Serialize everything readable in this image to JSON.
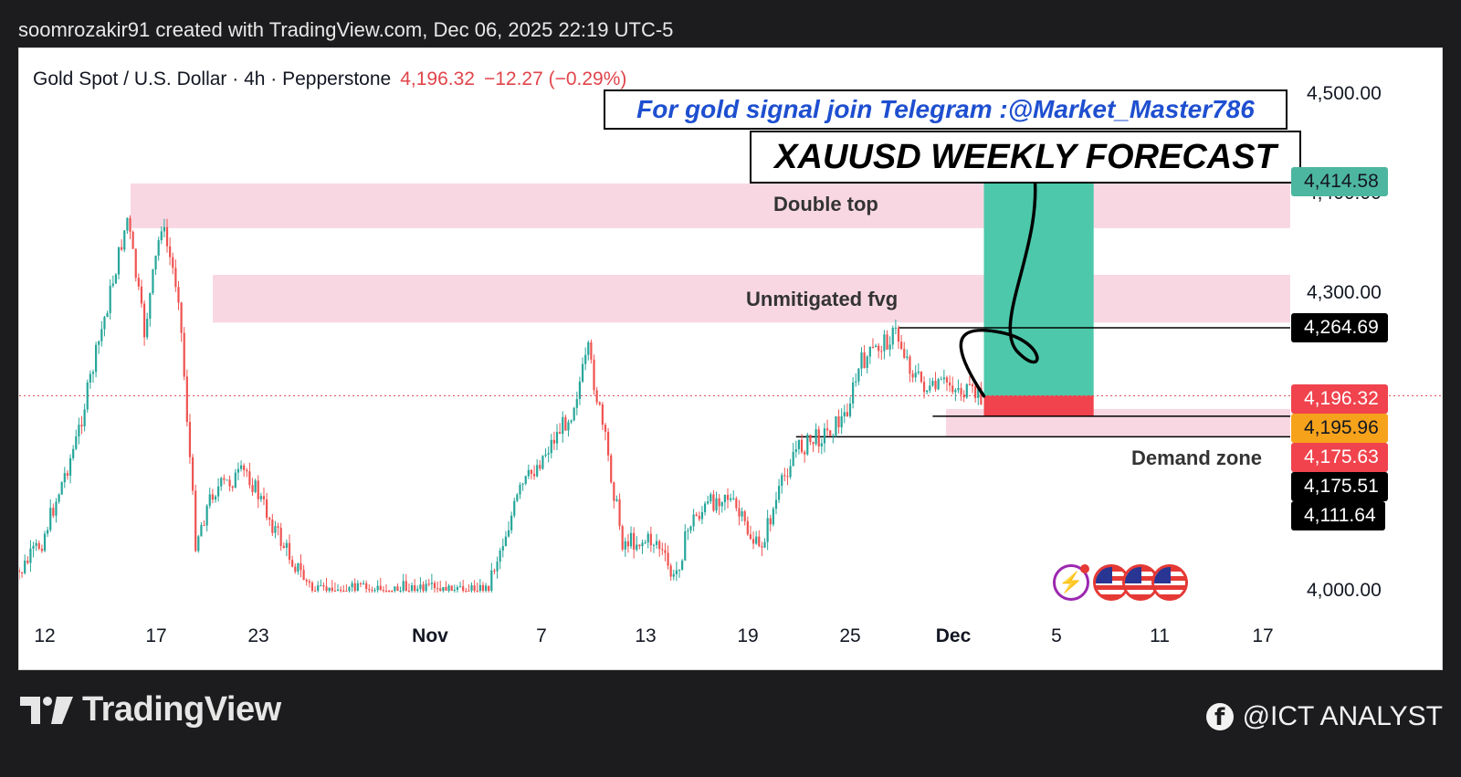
{
  "header": {
    "attribution": "soomrozakir91 created with TradingView.com, Dec 06, 2025 22:19 UTC-5"
  },
  "legend": {
    "symbol": "Gold Spot / U.S. Dollar · 4h · Pepperstone",
    "price": "4,196.32",
    "change": "−12.27 (−0.29%)"
  },
  "banners": {
    "telegram": "For gold signal join Telegram :@Market_Master786",
    "forecast": "XAUUSD WEEKLY FORECAST"
  },
  "zone_labels": {
    "double_top": "Double top",
    "fvg": "Unmitigated fvg",
    "demand": "Demand zone"
  },
  "price_tags": [
    {
      "text": "4,414.58",
      "bg": "#4db6a0",
      "fg": "#131722",
      "value": 4414.58
    },
    {
      "text": "4,264.69",
      "bg": "#000000",
      "fg": "#ffffff",
      "value": 4264.69
    },
    {
      "text": "4,196.32",
      "bg": "#f0434d",
      "fg": "#ffffff",
      "value": 4196.32
    },
    {
      "text": "4,195.96",
      "bg": "#f7a21b",
      "fg": "#131722",
      "value": 4195.96
    },
    {
      "text": "4,175.63",
      "bg": "#f0434d",
      "fg": "#ffffff",
      "value": 4175.63
    },
    {
      "text": "4,175.51",
      "bg": "#000000",
      "fg": "#ffffff",
      "value": 4175.51
    },
    {
      "text": "4,111.64",
      "bg": "#000000",
      "fg": "#ffffff",
      "value": 4111.64
    }
  ],
  "footer": {
    "brand": "TradingView",
    "handle": "@ICT ANALYST"
  },
  "colors": {
    "up": "#26a69a",
    "down": "#ef5350",
    "zone": "#f8d7e3",
    "target": "#4dc8ab",
    "stop": "#f0434d"
  },
  "chart_data": {
    "type": "candlestick",
    "title": "Gold Spot / U.S. Dollar · 4h · Pepperstone",
    "x_ticks": [
      {
        "label": "12",
        "bold": false
      },
      {
        "label": "17",
        "bold": false
      },
      {
        "label": "23",
        "bold": false
      },
      {
        "label": "Nov",
        "bold": true
      },
      {
        "label": "7",
        "bold": false
      },
      {
        "label": "13",
        "bold": false
      },
      {
        "label": "19",
        "bold": false
      },
      {
        "label": "25",
        "bold": false
      },
      {
        "label": "Dec",
        "bold": true
      },
      {
        "label": "5",
        "bold": false
      },
      {
        "label": "11",
        "bold": false
      },
      {
        "label": "17",
        "bold": false
      }
    ],
    "y_ticks": [
      {
        "label": "4,500.00",
        "value": 4500
      },
      {
        "label": "4,400.00",
        "value": 4400
      },
      {
        "label": "4,300.00",
        "value": 4300
      },
      {
        "label": "4,000.00",
        "value": 4000
      }
    ],
    "ylim": [
      4000,
      4500
    ],
    "last_price": 4196.32,
    "zones": [
      {
        "name": "Double top",
        "from": 4365,
        "to": 4410
      },
      {
        "name": "Unmitigated fvg",
        "from": 4270,
        "to": 4318
      },
      {
        "name": "Demand zone",
        "from": 4155,
        "to": 4183
      }
    ],
    "levels": [
      4264.69,
      4195.96,
      4175.51
    ],
    "price_path": [
      {
        "date": "Oct 10",
        "price": 4000
      },
      {
        "date": "Oct 12",
        "price": 4050
      },
      {
        "date": "Oct 14",
        "price": 4150
      },
      {
        "date": "Oct 16",
        "price": 4300
      },
      {
        "date": "Oct 17",
        "price": 4375
      },
      {
        "date": "Oct 18",
        "price": 4260
      },
      {
        "date": "Oct 19",
        "price": 4370
      },
      {
        "date": "Oct 20",
        "price": 4300
      },
      {
        "date": "Oct 21",
        "price": 4050
      },
      {
        "date": "Oct 22",
        "price": 4100
      },
      {
        "date": "Oct 24",
        "price": 4120
      },
      {
        "date": "Oct 26",
        "price": 4050
      },
      {
        "date": "Oct 28",
        "price": 3995
      },
      {
        "date": "Oct 31",
        "price": 4000
      },
      {
        "date": "Nov 3",
        "price": 4000
      },
      {
        "date": "Nov 5",
        "price": 3995
      },
      {
        "date": "Nov 7",
        "price": 4000
      },
      {
        "date": "Nov 9",
        "price": 4100
      },
      {
        "date": "Nov 12",
        "price": 4180
      },
      {
        "date": "Nov 13",
        "price": 4240
      },
      {
        "date": "Nov 14",
        "price": 4150
      },
      {
        "date": "Nov 15",
        "price": 4050
      },
      {
        "date": "Nov 17",
        "price": 4050
      },
      {
        "date": "Nov 18",
        "price": 4010
      },
      {
        "date": "Nov 19",
        "price": 4070
      },
      {
        "date": "Nov 21",
        "price": 4100
      },
      {
        "date": "Nov 23",
        "price": 4040
      },
      {
        "date": "Nov 25",
        "price": 4140
      },
      {
        "date": "Nov 27",
        "price": 4160
      },
      {
        "date": "Nov 28",
        "price": 4175
      },
      {
        "date": "Nov 29",
        "price": 4230
      },
      {
        "date": "Dec 1",
        "price": 4260
      },
      {
        "date": "Dec 2",
        "price": 4220
      },
      {
        "date": "Dec 3",
        "price": 4200
      },
      {
        "date": "Dec 4",
        "price": 4210
      },
      {
        "date": "Dec 5",
        "price": 4200
      },
      {
        "date": "Dec 6",
        "price": 4196
      }
    ],
    "projection": [
      {
        "date": "Dec 6",
        "price": 4196
      },
      {
        "date": "Dec 7",
        "price": 4260
      },
      {
        "date": "Dec 8",
        "price": 4240
      },
      {
        "date": "Dec 9",
        "price": 4330
      },
      {
        "date": "Dec 10",
        "price": 4414
      }
    ]
  }
}
